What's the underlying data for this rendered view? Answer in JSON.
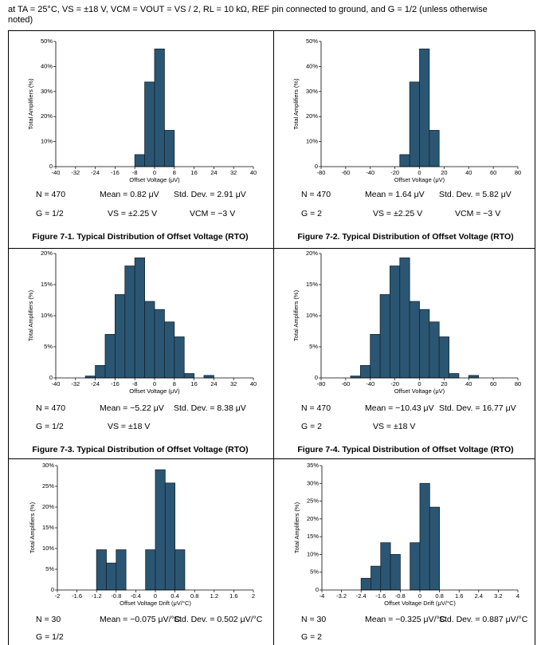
{
  "note": "at TA = 25°C, VS = ±18 V, VCM = VOUT = VS / 2, RL = 10 kΩ, REF pin connected to ground, and G = 1/2 (unless otherwise noted)",
  "chart_data": [
    {
      "type": "histogram",
      "title": "Figure 7-1. Typical Distribution of Offset Voltage (RTO)",
      "x_label": "Offset Voltage (μV)",
      "y_label": "Total Amplifiers (%)",
      "color": "#2b5673",
      "bins": [
        -8,
        -4,
        0,
        4,
        8
      ],
      "values": [
        4.8,
        33.8,
        47,
        14.5
      ],
      "xlim": [
        -40,
        40
      ],
      "xticks": [
        -40,
        -32,
        -24,
        -16,
        -8,
        0,
        8,
        16,
        24,
        32,
        40
      ],
      "ylim": [
        0,
        50
      ],
      "yticks": [
        0,
        {
          "value": 10,
          "label": "10%"
        },
        {
          "value": 20,
          "label": "20%"
        },
        {
          "value": 30,
          "label": "30%"
        },
        {
          "value": 40,
          "label": "40%"
        },
        {
          "value": 50,
          "label": "50%"
        }
      ],
      "annotations": [
        "N = 470",
        "Mean = 0.82 μV",
        "Std. Dev. = 2.91 μV",
        "G = 1/2",
        "VS = ±2.25 V",
        "VCM = −3 V"
      ]
    },
    {
      "type": "histogram",
      "title": "Figure 7-2. Typical Distribution of Offset Voltage (RTO)",
      "x_label": "Offset Voltage (μV)",
      "y_label": "Total Amplifiers (%)",
      "color": "#2b5673",
      "bins": [
        -16,
        -8,
        0,
        8,
        16
      ],
      "values": [
        4.8,
        33.8,
        47,
        14.5
      ],
      "xlim": [
        -80,
        80
      ],
      "xticks": [
        -80,
        -60,
        -40,
        -20,
        0,
        20,
        40,
        60,
        80
      ],
      "ylim": [
        0,
        50
      ],
      "yticks": [
        0,
        {
          "value": 10,
          "label": "10%"
        },
        {
          "value": 20,
          "label": "20%"
        },
        {
          "value": 30,
          "label": "30%"
        },
        {
          "value": 40,
          "label": "40%"
        },
        {
          "value": 50,
          "label": "50%"
        }
      ],
      "annotations": [
        "N = 470",
        "Mean = 1.64 μV",
        "Std. Dev. = 5.82 μV",
        "G = 2",
        "VS = ±2.25 V",
        "VCM = −3 V"
      ]
    },
    {
      "type": "histogram",
      "title": "Figure 7-3. Typical Distribution of Offset Voltage (RTO)",
      "x_label": "Offset Voltage (μV)",
      "y_label": "Total Amplifiers (%)",
      "color": "#2b5673",
      "bins": [
        -28,
        -24,
        -20,
        -16,
        -12,
        -8,
        -4,
        0,
        4,
        8,
        12,
        16,
        20,
        24
      ],
      "values": [
        0.3,
        2,
        7,
        13.4,
        18,
        19.3,
        12.3,
        11,
        9,
        6.6,
        0.7,
        0,
        0.4
      ],
      "xlim": [
        -40,
        40
      ],
      "xticks": [
        -40,
        -32,
        -24,
        -16,
        -8,
        0,
        8,
        16,
        24,
        32,
        40
      ],
      "ylim": [
        0,
        20
      ],
      "yticks": [
        0,
        {
          "value": 5,
          "label": "5%"
        },
        {
          "value": 10,
          "label": "10%"
        },
        {
          "value": 15,
          "label": "15%"
        },
        {
          "value": 20,
          "label": "20%"
        }
      ],
      "annotations": [
        "N = 470",
        "Mean = −5.22 μV",
        "Std. Dev. = 8.38 μV",
        "G = 1/2",
        "VS = ±18 V"
      ]
    },
    {
      "type": "histogram",
      "title": "Figure 7-4. Typical Distribution of Offset Voltage (RTO)",
      "x_label": "Offset Voltage (μV)",
      "y_label": "Total Amplifiers (%)",
      "color": "#2b5673",
      "bins": [
        -56,
        -48,
        -40,
        -32,
        -24,
        -16,
        -8,
        0,
        8,
        16,
        24,
        32,
        40,
        48
      ],
      "values": [
        0.3,
        2,
        7,
        13.4,
        18,
        19.3,
        12.3,
        11,
        9,
        6.6,
        0.7,
        0,
        0.4
      ],
      "xlim": [
        -80,
        80
      ],
      "xticks": [
        -80,
        -60,
        -40,
        -20,
        0,
        20,
        40,
        60,
        80
      ],
      "ylim": [
        0,
        20
      ],
      "yticks": [
        0,
        {
          "value": 5,
          "label": "5%"
        },
        {
          "value": 10,
          "label": "10%"
        },
        {
          "value": 15,
          "label": "15%"
        },
        {
          "value": 20,
          "label": "20%"
        }
      ],
      "annotations": [
        "N = 470",
        "Mean = −10.43 μV",
        "Std. Dev. = 16.77 μV",
        "G = 2",
        "VS = ±18 V"
      ]
    },
    {
      "type": "histogram",
      "x_label": "Offset Voltage Drift (μV/°C)",
      "y_label": "Total Amplifiers (%)",
      "color": "#2b5673",
      "bins": [
        -1.2,
        -1.0,
        -0.8,
        -0.6,
        -0.4,
        -0.2,
        0,
        0.2,
        0.4,
        0.6
      ],
      "values": [
        9.7,
        6.5,
        9.7,
        0,
        0,
        9.7,
        29,
        25.8,
        9.7
      ],
      "xlim": [
        -2,
        2
      ],
      "xticks": [
        -2,
        -1.6,
        -1.2,
        -0.8,
        -0.4,
        0,
        0.4,
        0.8,
        1.2,
        1.6,
        2
      ],
      "ylim": [
        0,
        30
      ],
      "yticks": [
        0,
        {
          "value": 5,
          "label": "5%"
        },
        {
          "value": 10,
          "label": "10%"
        },
        {
          "value": 15,
          "label": "15%"
        },
        {
          "value": 20,
          "label": "20%"
        },
        {
          "value": 25,
          "label": "25%"
        },
        {
          "value": 30,
          "label": "30%"
        }
      ],
      "annotations": [
        "N = 30",
        "Mean = −0.075 μV/°C",
        "Std. Dev. = 0.502 μV/°C",
        "G = 1/2"
      ]
    },
    {
      "type": "histogram",
      "x_label": "Offset Voltage Drift (μV/°C)",
      "y_label": "Total Amplifiers (%)",
      "color": "#2b5673",
      "bins": [
        -2.4,
        -2.0,
        -1.6,
        -1.2,
        -0.8,
        -0.4,
        0,
        0.4,
        0.8
      ],
      "values": [
        3.3,
        6.7,
        13.3,
        10,
        0,
        13.3,
        30,
        23.3
      ],
      "xlim": [
        -4,
        4
      ],
      "xticks": [
        -4,
        -3.2,
        -2.4,
        -1.6,
        -0.8,
        0,
        0.8,
        1.6,
        2.4,
        3.2,
        4
      ],
      "ylim": [
        0,
        35
      ],
      "yticks": [
        0,
        {
          "value": 5,
          "label": "5%"
        },
        {
          "value": 10,
          "label": "10%"
        },
        {
          "value": 15,
          "label": "15%"
        },
        {
          "value": 20,
          "label": "20%"
        },
        {
          "value": 25,
          "label": "25%"
        },
        {
          "value": 30,
          "label": "30%"
        },
        {
          "value": 35,
          "label": "35%"
        }
      ],
      "annotations": [
        "N = 30",
        "Mean = −0.325 μV/°C",
        "Std. Dev. = 0.887 μV/°C",
        "G = 2"
      ]
    }
  ]
}
